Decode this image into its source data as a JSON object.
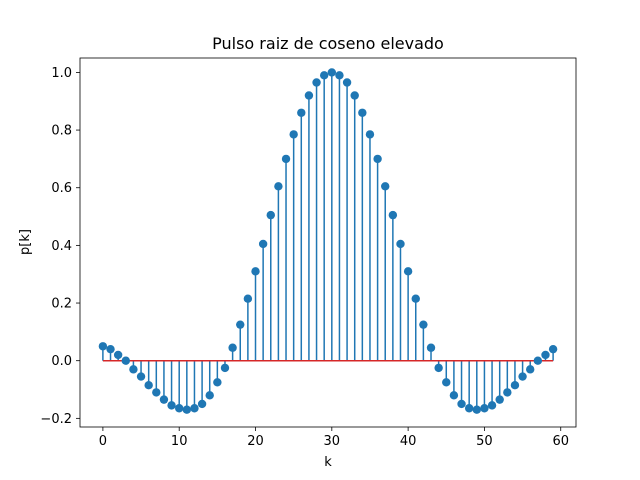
{
  "chart_data": {
    "type": "stem",
    "title": "Pulso raiz de coseno elevado",
    "xlabel": "k",
    "ylabel": "p[k]",
    "xlim": [
      -3,
      62
    ],
    "ylim": [
      -0.23,
      1.05
    ],
    "xticks": [
      0,
      10,
      20,
      30,
      40,
      50,
      60
    ],
    "xtick_labels": [
      "0",
      "10",
      "20",
      "30",
      "40",
      "50",
      "60"
    ],
    "yticks": [
      -0.2,
      0.0,
      0.2,
      0.4,
      0.6,
      0.8,
      1.0
    ],
    "ytick_labels": [
      "−0.2",
      "0.0",
      "0.2",
      "0.4",
      "0.6",
      "0.8",
      "1.0"
    ],
    "grid": false,
    "colors": {
      "stem": "#1f77b4",
      "marker": "#1f77b4",
      "baseline": "#d62728",
      "axes": "#000000"
    },
    "baseline_value": 0,
    "x": [
      0,
      1,
      2,
      3,
      4,
      5,
      6,
      7,
      8,
      9,
      10,
      11,
      12,
      13,
      14,
      15,
      16,
      17,
      18,
      19,
      20,
      21,
      22,
      23,
      24,
      25,
      26,
      27,
      28,
      29,
      30,
      31,
      32,
      33,
      34,
      35,
      36,
      37,
      38,
      39,
      40,
      41,
      42,
      43,
      44,
      45,
      46,
      47,
      48,
      49,
      50,
      51,
      52,
      53,
      54,
      55,
      56,
      57,
      58,
      59
    ],
    "values": [
      0.05,
      0.04,
      0.02,
      0.0,
      -0.03,
      -0.055,
      -0.085,
      -0.11,
      -0.135,
      -0.155,
      -0.165,
      -0.17,
      -0.165,
      -0.15,
      -0.12,
      -0.075,
      -0.025,
      0.045,
      0.125,
      0.215,
      0.31,
      0.405,
      0.505,
      0.605,
      0.7,
      0.785,
      0.86,
      0.92,
      0.965,
      0.99,
      1.0,
      0.99,
      0.965,
      0.92,
      0.86,
      0.785,
      0.7,
      0.605,
      0.505,
      0.405,
      0.31,
      0.215,
      0.125,
      0.045,
      -0.025,
      -0.075,
      -0.12,
      -0.15,
      -0.165,
      -0.17,
      -0.165,
      -0.155,
      -0.135,
      -0.11,
      -0.085,
      -0.055,
      -0.03,
      0.0,
      0.02,
      0.04
    ]
  }
}
